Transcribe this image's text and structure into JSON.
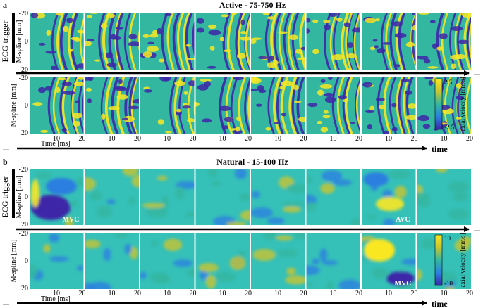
{
  "panels": [
    {
      "letter": "a",
      "title": "Active - 75-750 Hz",
      "ecg_label": "ECG trigger",
      "ylabel": "M-spline [mm]",
      "yticks": [
        "-20",
        "0",
        "20"
      ],
      "xticks": [
        "10",
        "20"
      ],
      "xlabel": "Time [ms]",
      "continuation": "...",
      "time_label": "time",
      "colorbar": {
        "max": "2.5",
        "min": "-2.5",
        "label": "axial velocity [mm/s]"
      },
      "style": "active",
      "annotations": []
    },
    {
      "letter": "b",
      "title": "Natural - 15-100 Hz",
      "ecg_label": "ECG trigger",
      "ylabel": "M-spline [mm]",
      "yticks": [
        "-20",
        "0",
        "20"
      ],
      "xticks": [
        "10",
        "20"
      ],
      "xlabel": "Time [ms]",
      "continuation": "...",
      "time_label": "time",
      "colorbar": {
        "max": "10",
        "min": "-10",
        "label": "axial velocity [mm/s]"
      },
      "style": "natural",
      "annotations": [
        {
          "row": 0,
          "tile": 0,
          "text": "MVC"
        },
        {
          "row": 0,
          "tile": 6,
          "text": "AVC"
        },
        {
          "row": 1,
          "tile": 6,
          "text": "MVC"
        }
      ]
    }
  ],
  "colors": {
    "vmin": "#3e26a8",
    "vlow": "#2c7fe0",
    "vmid": "#33b7a0",
    "vmid2": "#35c0b8",
    "vhigh": "#c9c42f",
    "vmax": "#f9e721",
    "background": "#ffffff",
    "ink": "#000000"
  }
}
